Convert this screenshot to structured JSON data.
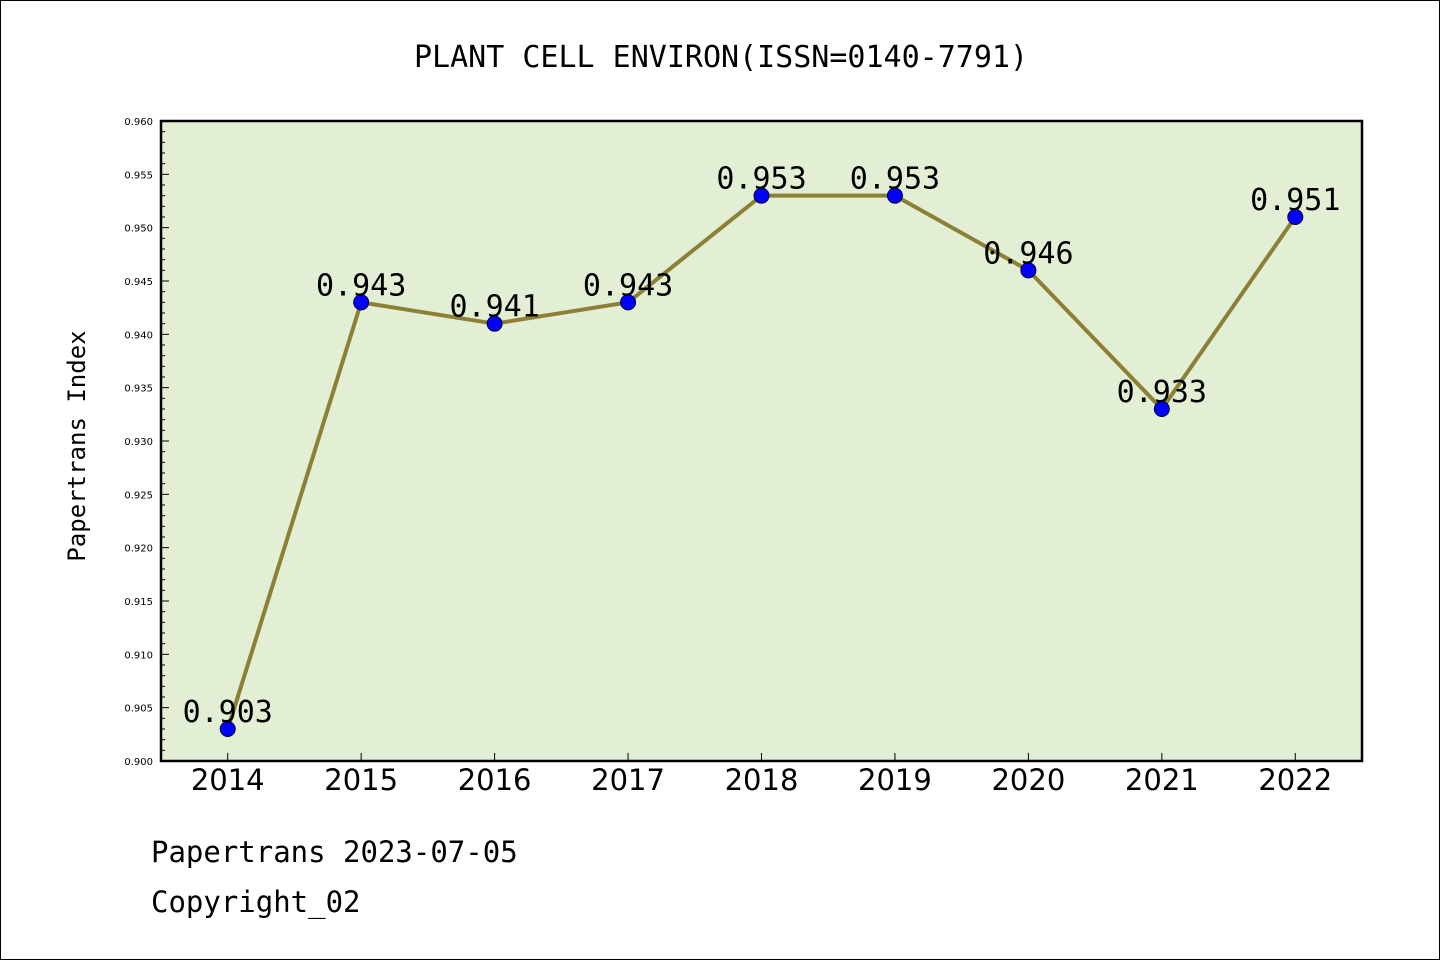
{
  "chart_data": {
    "type": "line",
    "title": "PLANT CELL ENVIRON(ISSN=0140-7791)",
    "xlabel": "",
    "ylabel": "Papertrans Index",
    "categories": [
      "2014",
      "2015",
      "2016",
      "2017",
      "2018",
      "2019",
      "2020",
      "2021",
      "2022"
    ],
    "series": [
      {
        "values": [
          0.903,
          0.943,
          0.941,
          0.943,
          0.953,
          0.953,
          0.946,
          0.933,
          0.951
        ],
        "labels": [
          "0.903",
          "0.943",
          "0.941",
          "0.943",
          "0.953",
          "0.953",
          "0.946",
          "0.933",
          "0.951"
        ]
      }
    ],
    "ylim": [
      0.9,
      0.96
    ],
    "yticks": [
      "0.900",
      "0.905",
      "0.910",
      "0.915",
      "0.920",
      "0.925",
      "0.930",
      "0.935",
      "0.940",
      "0.945",
      "0.950",
      "0.955",
      "0.960"
    ],
    "grid": false,
    "legend": "none",
    "colors": {
      "plot_background": "#e2efd5",
      "line": "#8b8035",
      "marker": "#0000ff",
      "axes": "#000000"
    }
  },
  "footer": {
    "source": "Papertrans 2023-07-05",
    "copyright": "Copyright_02"
  }
}
